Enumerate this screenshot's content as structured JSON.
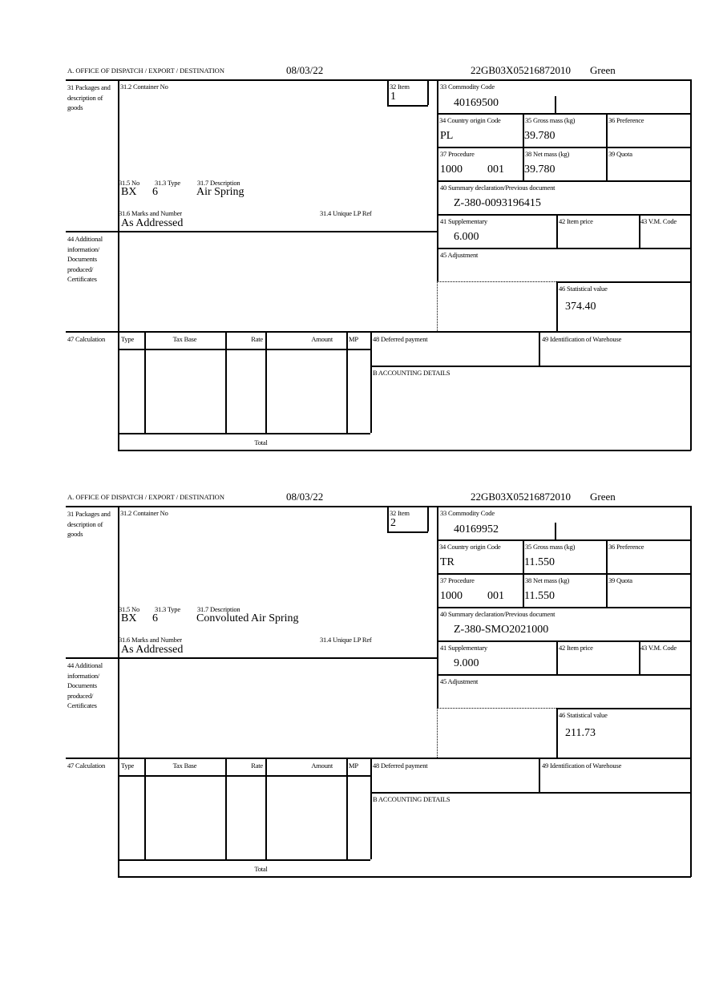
{
  "labels": {
    "office": "A. OFFICE OF DISPATCH / EXPORT / DESTINATION",
    "box31": "31 Packages and description of goods",
    "container": "31.2 Container No",
    "item": "32 Item",
    "commodity": "33 Commodity Code",
    "country": "34 Country origin Code",
    "gross": "35 Gross mass (kg)",
    "preference": "36 Preference",
    "procedure": "37 Procedure",
    "net": "38 Net mass (kg)",
    "quota": "39 Quota",
    "summary": "40 Summary declaration/Previous document",
    "pkg_no": "31.5 No",
    "pkg_type": "31.3 Type",
    "pkg_desc": "31.7 Description",
    "marks": "31.6 Marks and Number",
    "unique_ref": "31.4 Unique LP Ref",
    "supplementary": "41 Supplementary",
    "item_price": "42 Item price",
    "vm_code": "43 V.M. Code",
    "box44": "44 Additional information/ Documents produced/ Certificates",
    "adjustment": "45 Adjustment",
    "statistical": "46 Statistical value",
    "box47": "47 Calculation",
    "col_type": "Type",
    "col_taxbase": "Tax Base",
    "col_rate": "Rate",
    "col_amount": "Amount",
    "col_mp": "MP",
    "deferred": "48 Deferred payment",
    "warehouse": "49 Identification of Warehouse",
    "accounting": "B ACCOUNTING DETAILS",
    "total": "Total"
  },
  "items": [
    {
      "date": "08/03/22",
      "reference": "22GB03X05216872010",
      "route": "Green",
      "item_no": "1",
      "commodity_code": "40169500",
      "country": "PL",
      "gross_mass": "39.780",
      "procedure": "1000",
      "procedure_add": "001",
      "net_mass": "39.780",
      "summary_doc": "Z-380-0093196415",
      "pkg_no": "BX",
      "pkg_type": "6",
      "description": "Air Spring",
      "marks": "As Addressed",
      "supplementary": "6.000",
      "statistical_value": "374.40"
    },
    {
      "date": "08/03/22",
      "reference": "22GB03X05216872010",
      "route": "Green",
      "item_no": "2",
      "commodity_code": "40169952",
      "country": "TR",
      "gross_mass": "11.550",
      "procedure": "1000",
      "procedure_add": "001",
      "net_mass": "11.550",
      "summary_doc": "Z-380-SMO2021000",
      "pkg_no": "BX",
      "pkg_type": "6",
      "description": "Convoluted Air Spring",
      "marks": "As Addressed",
      "supplementary": "9.000",
      "statistical_value": "211.73"
    }
  ]
}
